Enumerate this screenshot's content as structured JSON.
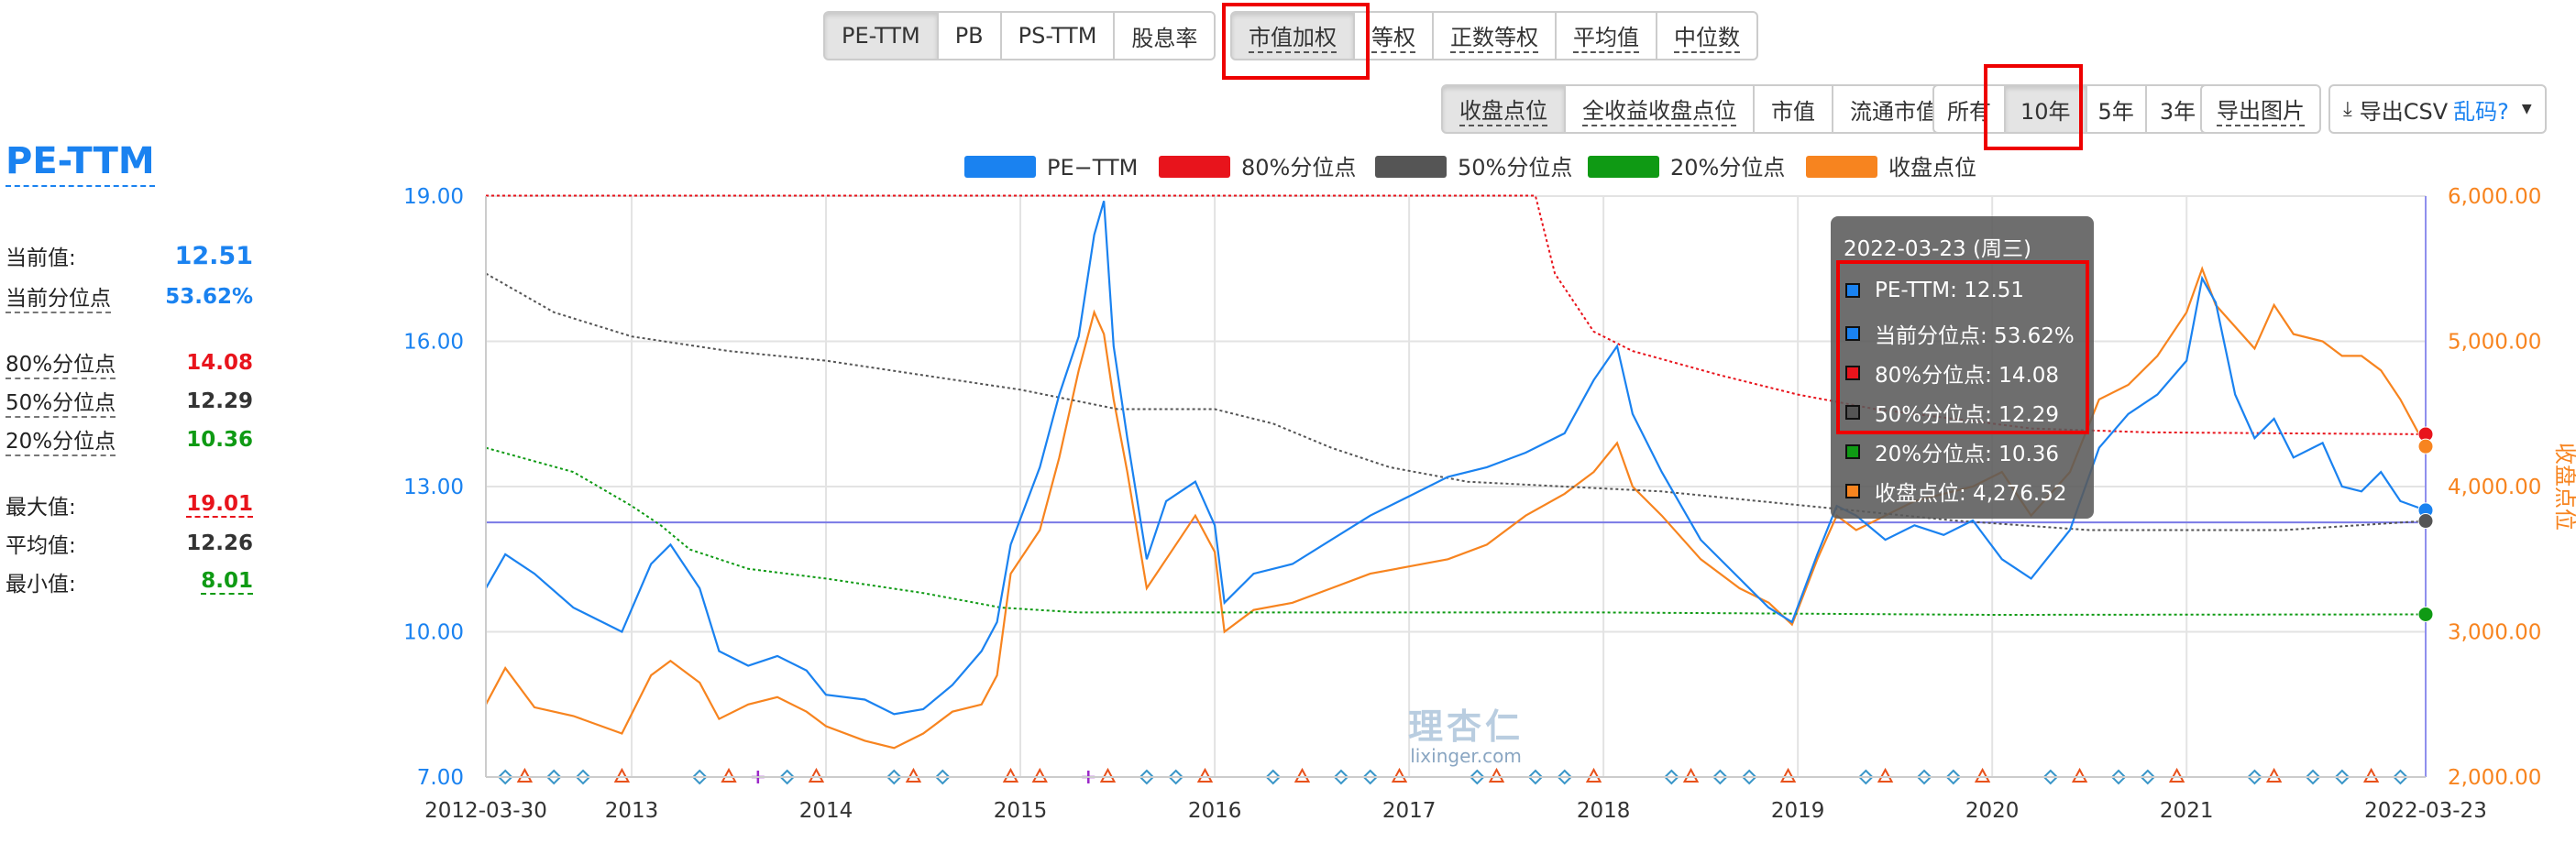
{
  "controls": {
    "metric_tabs": [
      "PE-TTM",
      "PB",
      "PS-TTM",
      "股息率"
    ],
    "weight_tabs": [
      "市值加权",
      "等权",
      "正数等权",
      "平均值",
      "中位数"
    ],
    "price_tabs": [
      "收盘点位",
      "全收益收盘点位",
      "市值",
      "流通市值"
    ],
    "range_tabs": [
      "所有",
      "10年",
      "5年",
      "3年"
    ],
    "export_image": "导出图片",
    "export_csv": "导出CSV",
    "garbled": "乱码?"
  },
  "summary": {
    "title": "PE-TTM",
    "current_value_label": "当前值:",
    "current_value": "12.51",
    "current_pct_label": "当前分位点",
    "current_pct": "53.62%",
    "p80_label": "80%分位点",
    "p80": "14.08",
    "p50_label": "50%分位点",
    "p50": "12.29",
    "p20_label": "20%分位点",
    "p20": "10.36",
    "max_label": "最大值:",
    "max": "19.01",
    "avg_label": "平均值:",
    "avg": "12.26",
    "min_label": "最小值:",
    "min": "8.01"
  },
  "tooltip": {
    "date": "2022-03-23 (周三)",
    "rows": [
      {
        "text": "PE-TTM: 12.51",
        "color": "#1a82f0"
      },
      {
        "text": "当前分位点: 53.62%",
        "color": "#1a82f0"
      },
      {
        "text": "80%分位点: 14.08",
        "color": "#e8141c"
      },
      {
        "text": "50%分位点: 12.29",
        "color": "#555555"
      },
      {
        "text": "20%分位点: 10.36",
        "color": "#0f9a14"
      },
      {
        "text": "收盘点位: 4,276.52",
        "color": "#f7841f"
      }
    ]
  },
  "watermark": {
    "line1": "理杏仁",
    "line2": "lixinger.com"
  },
  "colors": {
    "pe": "#1a82f0",
    "p80": "#e8141c",
    "p50": "#555555",
    "p20": "#0f9a14",
    "price": "#f7841f",
    "avg_line": "#7a7ae6",
    "highlight": "#e00000"
  },
  "chart_data": {
    "type": "line",
    "x_start_label": "2012-03-30",
    "x_end_label": "2022-03-23",
    "x_ticks": [
      "2013",
      "2014",
      "2015",
      "2016",
      "2017",
      "2018",
      "2019",
      "2020",
      "2021"
    ],
    "y_left": {
      "min": 7,
      "max": 19,
      "ticks": [
        "7.00",
        "10.00",
        "13.00",
        "16.00",
        "19.00"
      ]
    },
    "y_right": {
      "label": "收盘点位",
      "min": 2000,
      "max": 6000,
      "ticks": [
        "2,000.00",
        "3,000.00",
        "4,000.00",
        "5,000.00",
        "6,000.00"
      ]
    },
    "legend": [
      "PE−TTM",
      "80%分位点",
      "50%分位点",
      "20%分位点",
      "收盘点位"
    ],
    "average_line": 12.26,
    "series": [
      {
        "name": "PE−TTM",
        "axis": "left",
        "style": "solid",
        "points": [
          [
            2012.25,
            10.9
          ],
          [
            2012.35,
            11.6
          ],
          [
            2012.5,
            11.2
          ],
          [
            2012.7,
            10.5
          ],
          [
            2012.95,
            10.0
          ],
          [
            2013.1,
            11.4
          ],
          [
            2013.2,
            11.8
          ],
          [
            2013.35,
            10.9
          ],
          [
            2013.45,
            9.6
          ],
          [
            2013.6,
            9.3
          ],
          [
            2013.75,
            9.5
          ],
          [
            2013.9,
            9.2
          ],
          [
            2014.0,
            8.7
          ],
          [
            2014.2,
            8.6
          ],
          [
            2014.35,
            8.3
          ],
          [
            2014.5,
            8.4
          ],
          [
            2014.65,
            8.9
          ],
          [
            2014.8,
            9.6
          ],
          [
            2014.88,
            10.2
          ],
          [
            2014.95,
            11.8
          ],
          [
            2015.1,
            13.4
          ],
          [
            2015.2,
            14.9
          ],
          [
            2015.3,
            16.1
          ],
          [
            2015.38,
            18.2
          ],
          [
            2015.43,
            18.9
          ],
          [
            2015.48,
            15.9
          ],
          [
            2015.55,
            14.0
          ],
          [
            2015.65,
            11.5
          ],
          [
            2015.75,
            12.7
          ],
          [
            2015.9,
            13.1
          ],
          [
            2016.0,
            12.2
          ],
          [
            2016.05,
            10.6
          ],
          [
            2016.2,
            11.2
          ],
          [
            2016.4,
            11.4
          ],
          [
            2016.6,
            11.9
          ],
          [
            2016.8,
            12.4
          ],
          [
            2017.0,
            12.8
          ],
          [
            2017.2,
            13.2
          ],
          [
            2017.4,
            13.4
          ],
          [
            2017.6,
            13.7
          ],
          [
            2017.8,
            14.1
          ],
          [
            2017.95,
            15.2
          ],
          [
            2018.07,
            15.9
          ],
          [
            2018.15,
            14.5
          ],
          [
            2018.3,
            13.3
          ],
          [
            2018.5,
            11.9
          ],
          [
            2018.7,
            11.1
          ],
          [
            2018.85,
            10.5
          ],
          [
            2018.97,
            10.2
          ],
          [
            2019.1,
            11.6
          ],
          [
            2019.2,
            12.6
          ],
          [
            2019.3,
            12.4
          ],
          [
            2019.45,
            11.9
          ],
          [
            2019.6,
            12.2
          ],
          [
            2019.75,
            12.0
          ],
          [
            2019.9,
            12.3
          ],
          [
            2020.05,
            11.5
          ],
          [
            2020.2,
            11.1
          ],
          [
            2020.4,
            12.1
          ],
          [
            2020.55,
            13.8
          ],
          [
            2020.7,
            14.5
          ],
          [
            2020.85,
            14.9
          ],
          [
            2021.0,
            15.6
          ],
          [
            2021.08,
            17.3
          ],
          [
            2021.15,
            16.8
          ],
          [
            2021.25,
            14.9
          ],
          [
            2021.35,
            14.0
          ],
          [
            2021.45,
            14.4
          ],
          [
            2021.55,
            13.6
          ],
          [
            2021.7,
            13.9
          ],
          [
            2021.8,
            13.0
          ],
          [
            2021.9,
            12.9
          ],
          [
            2022.0,
            13.3
          ],
          [
            2022.1,
            12.7
          ],
          [
            2022.23,
            12.51
          ]
        ]
      },
      {
        "name": "80%分位点",
        "axis": "left",
        "style": "dotted",
        "points": [
          [
            2012.25,
            19.01
          ],
          [
            2017.65,
            19.01
          ],
          [
            2017.75,
            17.4
          ],
          [
            2017.95,
            16.2
          ],
          [
            2018.15,
            15.8
          ],
          [
            2018.6,
            15.3
          ],
          [
            2019.0,
            14.9
          ],
          [
            2019.4,
            14.6
          ],
          [
            2019.8,
            14.4
          ],
          [
            2020.2,
            14.2
          ],
          [
            2020.8,
            14.12
          ],
          [
            2021.5,
            14.1
          ],
          [
            2022.23,
            14.08
          ]
        ]
      },
      {
        "name": "50%分位点",
        "axis": "left",
        "style": "dotted",
        "points": [
          [
            2012.25,
            17.4
          ],
          [
            2012.6,
            16.6
          ],
          [
            2013.0,
            16.1
          ],
          [
            2013.5,
            15.8
          ],
          [
            2014.0,
            15.6
          ],
          [
            2014.5,
            15.3
          ],
          [
            2015.0,
            15.0
          ],
          [
            2015.5,
            14.6
          ],
          [
            2016.0,
            14.6
          ],
          [
            2016.3,
            14.3
          ],
          [
            2016.6,
            13.8
          ],
          [
            2016.9,
            13.4
          ],
          [
            2017.3,
            13.1
          ],
          [
            2017.8,
            13.0
          ],
          [
            2018.3,
            12.9
          ],
          [
            2018.8,
            12.7
          ],
          [
            2019.3,
            12.5
          ],
          [
            2019.8,
            12.3
          ],
          [
            2020.5,
            12.1
          ],
          [
            2021.5,
            12.1
          ],
          [
            2022.23,
            12.29
          ]
        ]
      },
      {
        "name": "20%分位点",
        "axis": "left",
        "style": "dotted",
        "points": [
          [
            2012.25,
            13.8
          ],
          [
            2012.7,
            13.3
          ],
          [
            2013.0,
            12.6
          ],
          [
            2013.15,
            12.2
          ],
          [
            2013.3,
            11.7
          ],
          [
            2013.6,
            11.3
          ],
          [
            2014.0,
            11.1
          ],
          [
            2014.5,
            10.8
          ],
          [
            2014.9,
            10.5
          ],
          [
            2015.3,
            10.4
          ],
          [
            2016.0,
            10.4
          ],
          [
            2018.0,
            10.4
          ],
          [
            2020.0,
            10.35
          ],
          [
            2022.23,
            10.36
          ]
        ]
      },
      {
        "name": "收盘点位",
        "axis": "right",
        "style": "solid",
        "points": [
          [
            2012.25,
            2500
          ],
          [
            2012.35,
            2750
          ],
          [
            2012.5,
            2480
          ],
          [
            2012.7,
            2420
          ],
          [
            2012.95,
            2300
          ],
          [
            2013.1,
            2700
          ],
          [
            2013.2,
            2800
          ],
          [
            2013.35,
            2650
          ],
          [
            2013.45,
            2400
          ],
          [
            2013.6,
            2500
          ],
          [
            2013.75,
            2550
          ],
          [
            2013.9,
            2450
          ],
          [
            2014.0,
            2350
          ],
          [
            2014.2,
            2250
          ],
          [
            2014.35,
            2200
          ],
          [
            2014.5,
            2300
          ],
          [
            2014.65,
            2450
          ],
          [
            2014.8,
            2500
          ],
          [
            2014.88,
            2700
          ],
          [
            2014.95,
            3400
          ],
          [
            2015.1,
            3700
          ],
          [
            2015.2,
            4200
          ],
          [
            2015.3,
            4800
          ],
          [
            2015.38,
            5200
          ],
          [
            2015.43,
            5050
          ],
          [
            2015.48,
            4600
          ],
          [
            2015.55,
            4100
          ],
          [
            2015.65,
            3300
          ],
          [
            2015.75,
            3500
          ],
          [
            2015.9,
            3800
          ],
          [
            2016.0,
            3550
          ],
          [
            2016.05,
            3000
          ],
          [
            2016.2,
            3150
          ],
          [
            2016.4,
            3200
          ],
          [
            2016.6,
            3300
          ],
          [
            2016.8,
            3400
          ],
          [
            2017.0,
            3450
          ],
          [
            2017.2,
            3500
          ],
          [
            2017.4,
            3600
          ],
          [
            2017.6,
            3800
          ],
          [
            2017.8,
            3950
          ],
          [
            2017.95,
            4100
          ],
          [
            2018.07,
            4300
          ],
          [
            2018.15,
            4000
          ],
          [
            2018.3,
            3800
          ],
          [
            2018.5,
            3500
          ],
          [
            2018.7,
            3300
          ],
          [
            2018.85,
            3200
          ],
          [
            2018.97,
            3050
          ],
          [
            2019.1,
            3500
          ],
          [
            2019.2,
            3800
          ],
          [
            2019.3,
            3700
          ],
          [
            2019.45,
            3800
          ],
          [
            2019.6,
            3900
          ],
          [
            2019.75,
            3950
          ],
          [
            2019.9,
            4000
          ],
          [
            2020.05,
            4100
          ],
          [
            2020.2,
            3800
          ],
          [
            2020.4,
            4100
          ],
          [
            2020.55,
            4600
          ],
          [
            2020.7,
            4700
          ],
          [
            2020.85,
            4900
          ],
          [
            2021.0,
            5200
          ],
          [
            2021.08,
            5500
          ],
          [
            2021.15,
            5250
          ],
          [
            2021.25,
            5100
          ],
          [
            2021.35,
            4950
          ],
          [
            2021.45,
            5250
          ],
          [
            2021.55,
            5050
          ],
          [
            2021.7,
            5000
          ],
          [
            2021.8,
            4900
          ],
          [
            2021.9,
            4900
          ],
          [
            2022.0,
            4800
          ],
          [
            2022.1,
            4600
          ],
          [
            2022.23,
            4276.52
          ]
        ]
      }
    ],
    "events": [
      {
        "x": 2012.35,
        "kind": "diamond"
      },
      {
        "x": 2012.45,
        "kind": "triangle"
      },
      {
        "x": 2012.6,
        "kind": "diamond"
      },
      {
        "x": 2012.75,
        "kind": "diamond"
      },
      {
        "x": 2012.95,
        "kind": "triangle"
      },
      {
        "x": 2013.35,
        "kind": "diamond"
      },
      {
        "x": 2013.5,
        "kind": "triangle"
      },
      {
        "x": 2013.65,
        "kind": "plus"
      },
      {
        "x": 2013.8,
        "kind": "diamond"
      },
      {
        "x": 2013.95,
        "kind": "triangle"
      },
      {
        "x": 2014.35,
        "kind": "diamond"
      },
      {
        "x": 2014.45,
        "kind": "triangle"
      },
      {
        "x": 2014.6,
        "kind": "diamond"
      },
      {
        "x": 2014.95,
        "kind": "triangle"
      },
      {
        "x": 2015.1,
        "kind": "triangle"
      },
      {
        "x": 2015.35,
        "kind": "plus"
      },
      {
        "x": 2015.45,
        "kind": "triangle"
      },
      {
        "x": 2015.65,
        "kind": "diamond"
      },
      {
        "x": 2015.8,
        "kind": "diamond"
      },
      {
        "x": 2015.95,
        "kind": "triangle"
      },
      {
        "x": 2016.3,
        "kind": "diamond"
      },
      {
        "x": 2016.45,
        "kind": "triangle"
      },
      {
        "x": 2016.65,
        "kind": "diamond"
      },
      {
        "x": 2016.8,
        "kind": "diamond"
      },
      {
        "x": 2016.95,
        "kind": "triangle"
      },
      {
        "x": 2017.35,
        "kind": "diamond"
      },
      {
        "x": 2017.45,
        "kind": "triangle"
      },
      {
        "x": 2017.65,
        "kind": "diamond"
      },
      {
        "x": 2017.8,
        "kind": "diamond"
      },
      {
        "x": 2017.95,
        "kind": "triangle"
      },
      {
        "x": 2018.35,
        "kind": "diamond"
      },
      {
        "x": 2018.45,
        "kind": "triangle"
      },
      {
        "x": 2018.6,
        "kind": "diamond"
      },
      {
        "x": 2018.75,
        "kind": "diamond"
      },
      {
        "x": 2018.95,
        "kind": "triangle"
      },
      {
        "x": 2019.35,
        "kind": "diamond"
      },
      {
        "x": 2019.45,
        "kind": "triangle"
      },
      {
        "x": 2019.65,
        "kind": "diamond"
      },
      {
        "x": 2019.8,
        "kind": "diamond"
      },
      {
        "x": 2019.95,
        "kind": "triangle"
      },
      {
        "x": 2020.3,
        "kind": "diamond"
      },
      {
        "x": 2020.45,
        "kind": "triangle"
      },
      {
        "x": 2020.65,
        "kind": "diamond"
      },
      {
        "x": 2020.8,
        "kind": "diamond"
      },
      {
        "x": 2020.95,
        "kind": "triangle"
      },
      {
        "x": 2021.35,
        "kind": "diamond"
      },
      {
        "x": 2021.45,
        "kind": "triangle"
      },
      {
        "x": 2021.65,
        "kind": "diamond"
      },
      {
        "x": 2021.8,
        "kind": "diamond"
      },
      {
        "x": 2021.95,
        "kind": "triangle"
      },
      {
        "x": 2022.1,
        "kind": "diamond"
      }
    ]
  }
}
